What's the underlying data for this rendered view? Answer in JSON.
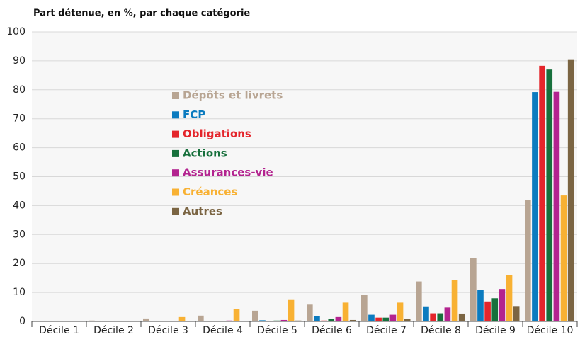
{
  "chart_data": {
    "type": "bar",
    "title": "Part détenue, en %, par chaque catégorie",
    "categories": [
      "Décile 1",
      "Décile 2",
      "Décile 3",
      "Décile 4",
      "Décile 5",
      "Décile 6",
      "Décile 7",
      "Décile 8",
      "Décile 9",
      "Décile 10"
    ],
    "series": [
      {
        "name": "Dépôts et livrets",
        "color": "#b8a593",
        "values": [
          0.2,
          0.3,
          1.0,
          2.0,
          3.7,
          5.8,
          9.2,
          13.8,
          21.8,
          42
        ]
      },
      {
        "name": "FCP",
        "color": "#0b7bbf",
        "values": [
          0.1,
          0.1,
          0.1,
          0.1,
          0.4,
          1.8,
          2.3,
          5.2,
          11,
          79.2
        ]
      },
      {
        "name": "Obligations",
        "color": "#e4252b",
        "values": [
          0.1,
          0.1,
          0.1,
          0.2,
          0.2,
          0.3,
          1.3,
          2.8,
          6.9,
          88.3
        ]
      },
      {
        "name": "Actions",
        "color": "#17703c",
        "values": [
          0.1,
          0.1,
          0.1,
          0.2,
          0.3,
          0.8,
          1.3,
          2.8,
          8,
          87
        ]
      },
      {
        "name": "Assurances-vie",
        "color": "#b3238f",
        "values": [
          0.2,
          0.2,
          0.2,
          0.3,
          0.5,
          1.5,
          2.3,
          4.8,
          11.2,
          79.3
        ]
      },
      {
        "name": "Créances",
        "color": "#f8b133",
        "values": [
          0.1,
          0.2,
          1.5,
          4.3,
          7.4,
          6.5,
          6.5,
          14.4,
          15.9,
          43.5
        ]
      },
      {
        "name": "Autres",
        "color": "#7b6543",
        "values": [
          0.1,
          0.1,
          0.1,
          0.2,
          0.3,
          0.5,
          0.9,
          2.7,
          5.3,
          90.3
        ]
      }
    ],
    "ylim": [
      0,
      100
    ],
    "yticks": [
      0,
      10,
      20,
      30,
      40,
      50,
      60,
      70,
      80,
      90,
      100
    ],
    "grid": true
  }
}
